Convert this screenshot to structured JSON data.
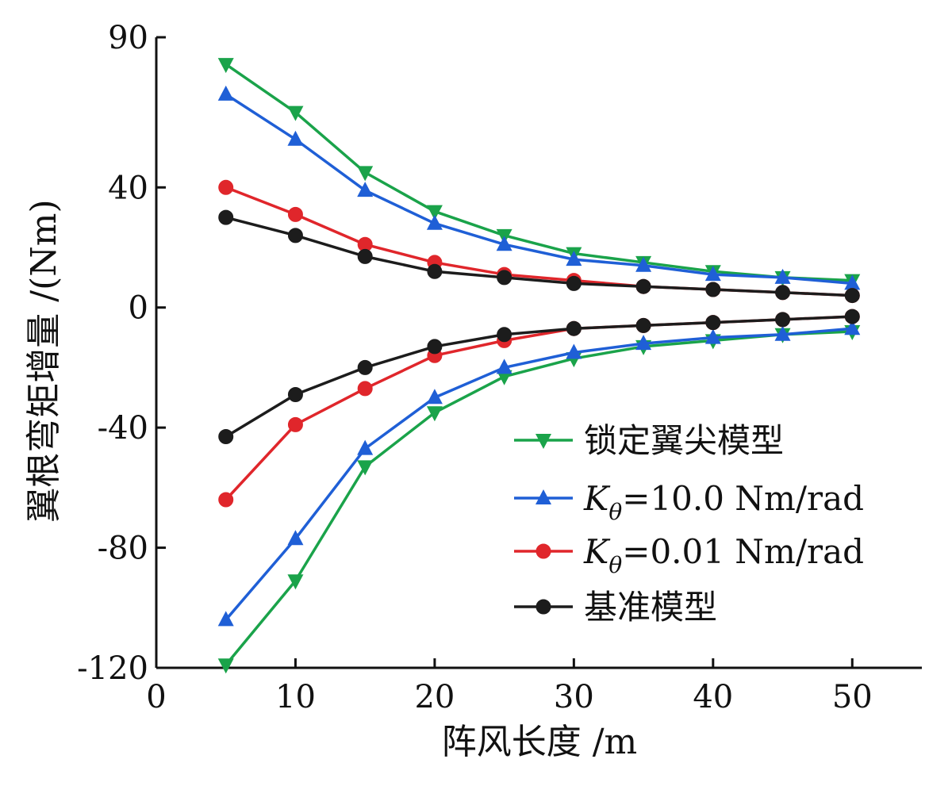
{
  "chart_data": {
    "type": "line",
    "xlabel": "阵风长度 /m",
    "ylabel": "翼根弯矩增量 /(Nm)",
    "xlim": [
      0,
      55
    ],
    "ylim": [
      -120,
      90
    ],
    "xticks": [
      0,
      10,
      20,
      30,
      40,
      50
    ],
    "yticks": [
      90,
      40,
      0,
      -40,
      -80,
      -120
    ],
    "x": [
      5,
      10,
      15,
      20,
      25,
      30,
      35,
      40,
      45,
      50
    ],
    "legend_position": "lower-right",
    "grid": false,
    "series": [
      {
        "name": "锁定翼尖模型",
        "color": "#1aa34a",
        "marker": "triangle-down",
        "upper": [
          81,
          65,
          45,
          32,
          24,
          18,
          15,
          12,
          10,
          9
        ],
        "lower": [
          -119,
          -91,
          -53,
          -35,
          -23,
          -17,
          -13,
          -11,
          -9,
          -8
        ]
      },
      {
        "name": "Kθ=10.0 Nm/rad",
        "name_parts": {
          "sym": "K",
          "sub": "θ",
          "rest": "=10.0 Nm/rad"
        },
        "color": "#1f5fd6",
        "marker": "triangle-up",
        "upper": [
          71,
          56,
          39,
          28,
          21,
          16,
          14,
          11,
          10,
          8
        ],
        "lower": [
          -104,
          -77,
          -47,
          -30,
          -20,
          -15,
          -12,
          -10,
          -9,
          -7
        ]
      },
      {
        "name": "Kθ=0.01 Nm/rad",
        "name_parts": {
          "sym": "K",
          "sub": "θ",
          "rest": "=0.01 Nm/rad"
        },
        "color": "#e0262b",
        "marker": "circle",
        "upper": [
          40,
          31,
          21,
          15,
          11,
          9,
          7,
          6,
          5,
          4
        ],
        "lower": [
          -64,
          -39,
          -27,
          -16,
          -11,
          -7,
          -6,
          -5,
          -4,
          -3
        ]
      },
      {
        "name": "基准模型",
        "color": "#1c1c1c",
        "marker": "circle",
        "upper": [
          30,
          24,
          17,
          12,
          10,
          8,
          7,
          6,
          5,
          4
        ],
        "lower": [
          -43,
          -29,
          -20,
          -13,
          -9,
          -7,
          -6,
          -5,
          -4,
          -3
        ]
      }
    ]
  }
}
